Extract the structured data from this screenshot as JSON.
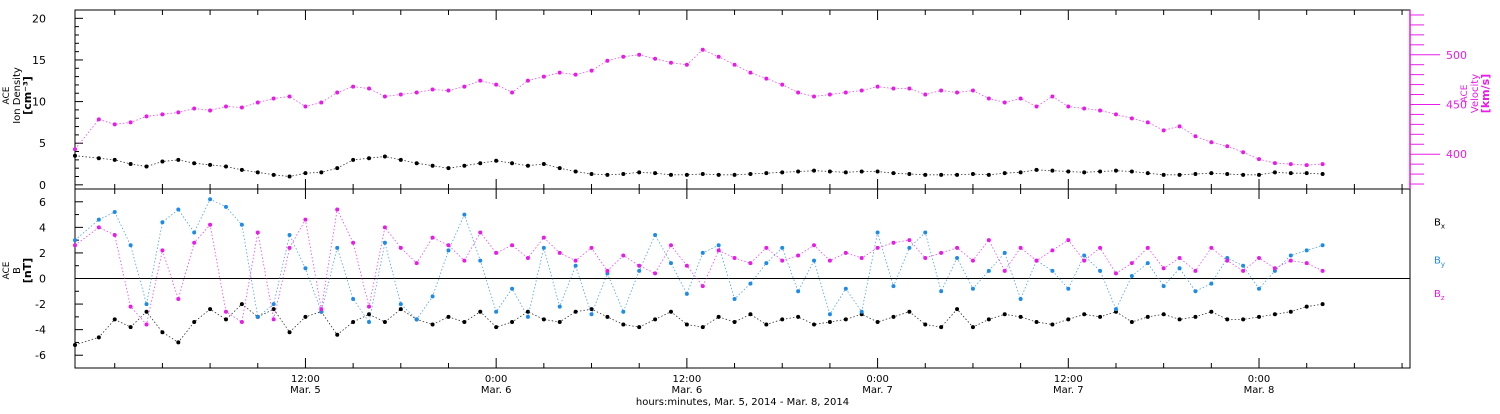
{
  "chart_data": [
    {
      "type": "scatter",
      "title": "",
      "xlabel": "hours:minutes, Mar. 5, 2014 - Mar. 8, 2014",
      "x_range_hours": [
        -2.5,
        81.5
      ],
      "x_ticks": [
        {
          "hour": 12,
          "label_time": "12:00",
          "label_date": "Mar. 5"
        },
        {
          "hour": 24,
          "label_time": "0:00",
          "label_date": "Mar. 6"
        },
        {
          "hour": 36,
          "label_time": "12:00",
          "label_date": "Mar. 6"
        },
        {
          "hour": 48,
          "label_time": "0:00",
          "label_date": "Mar. 7"
        },
        {
          "hour": 60,
          "label_time": "12:00",
          "label_date": "Mar. 7"
        },
        {
          "hour": 72,
          "label_time": "0:00",
          "label_date": "Mar. 8"
        }
      ],
      "left_axis": {
        "label_lines": [
          "ACE",
          "Ion Density",
          "[cm⁻³]"
        ],
        "ylim": [
          -0.5,
          21
        ],
        "ticks": [
          0,
          5,
          10,
          15,
          20
        ]
      },
      "right_axis": {
        "label_lines": [
          "ACE",
          "Velocity",
          "[km/s]"
        ],
        "ylim": [
          365,
          545
        ],
        "ticks": [
          400,
          450,
          500
        ],
        "color": "#e81be8"
      },
      "series": [
        {
          "name": "Density",
          "axis": "left",
          "color": "#000000",
          "x": [
            -2.5,
            -1,
            0,
            1,
            2,
            3,
            4,
            5,
            6,
            7,
            8,
            9,
            10,
            11,
            12,
            13,
            14,
            15,
            16,
            17,
            18,
            19,
            20,
            21,
            22,
            23,
            24,
            25,
            26,
            27,
            28,
            29,
            30,
            31,
            32,
            33,
            34,
            35,
            36,
            37,
            38,
            39,
            40,
            41,
            42,
            43,
            44,
            45,
            46,
            47,
            48,
            49,
            50,
            51,
            52,
            53,
            54,
            55,
            56,
            57,
            58,
            59,
            60,
            61,
            62,
            63,
            64,
            65,
            66,
            67,
            68,
            69,
            70,
            71,
            72,
            73,
            74,
            75,
            76
          ],
          "y": [
            3.5,
            3.2,
            3.0,
            2.5,
            2.2,
            2.8,
            3.0,
            2.6,
            2.4,
            2.2,
            1.8,
            1.5,
            1.2,
            1.0,
            1.4,
            1.5,
            2.0,
            3.0,
            3.2,
            3.4,
            3.0,
            2.6,
            2.3,
            2.0,
            2.3,
            2.6,
            2.9,
            2.6,
            2.3,
            2.5,
            2.0,
            1.6,
            1.3,
            1.2,
            1.3,
            1.5,
            1.4,
            1.2,
            1.2,
            1.3,
            1.2,
            1.2,
            1.3,
            1.4,
            1.5,
            1.6,
            1.7,
            1.6,
            1.5,
            1.6,
            1.6,
            1.4,
            1.3,
            1.2,
            1.2,
            1.2,
            1.3,
            1.2,
            1.4,
            1.5,
            1.8,
            1.7,
            1.6,
            1.5,
            1.6,
            1.7,
            1.6,
            1.4,
            1.2,
            1.2,
            1.3,
            1.4,
            1.3,
            1.2,
            1.2,
            1.5,
            1.4,
            1.4,
            1.3
          ]
        },
        {
          "name": "Velocity",
          "axis": "right",
          "color": "#e81be8",
          "x": [
            -2.5,
            -1,
            0,
            1,
            2,
            3,
            4,
            5,
            6,
            7,
            8,
            9,
            10,
            11,
            12,
            13,
            14,
            15,
            16,
            17,
            18,
            19,
            20,
            21,
            22,
            23,
            24,
            25,
            26,
            27,
            28,
            29,
            30,
            31,
            32,
            33,
            34,
            35,
            36,
            37,
            38,
            39,
            40,
            41,
            42,
            43,
            44,
            45,
            46,
            47,
            48,
            49,
            50,
            51,
            52,
            53,
            54,
            55,
            56,
            57,
            58,
            59,
            60,
            61,
            62,
            63,
            64,
            65,
            66,
            67,
            68,
            69,
            70,
            71,
            72,
            73,
            74,
            75,
            76
          ],
          "y": [
            405,
            435,
            430,
            432,
            438,
            440,
            442,
            446,
            444,
            448,
            447,
            452,
            456,
            458,
            448,
            452,
            462,
            468,
            466,
            458,
            460,
            462,
            465,
            464,
            468,
            474,
            470,
            462,
            474,
            478,
            482,
            480,
            484,
            494,
            498,
            500,
            496,
            492,
            490,
            505,
            498,
            490,
            482,
            476,
            470,
            462,
            458,
            460,
            462,
            464,
            468,
            466,
            466,
            460,
            464,
            462,
            464,
            456,
            452,
            456,
            448,
            458,
            448,
            446,
            444,
            440,
            436,
            432,
            424,
            428,
            418,
            412,
            408,
            402,
            395,
            391,
            390,
            389,
            390
          ]
        }
      ]
    },
    {
      "type": "scatter",
      "title": "",
      "xlabel": "hours:minutes, Mar. 5, 2014 - Mar. 8, 2014",
      "x_range_hours": [
        -2.5,
        81.5
      ],
      "left_axis": {
        "label_lines": [
          "ACE",
          "B",
          "[nT]"
        ],
        "ylim": [
          -7,
          7
        ],
        "ticks": [
          -6,
          -4,
          -2,
          0,
          2,
          4,
          6
        ]
      },
      "zero_line": true,
      "legend": "right",
      "series": [
        {
          "name": "Bx",
          "color": "#000000",
          "x": [
            -2.5,
            -1,
            0,
            1,
            2,
            3,
            4,
            5,
            6,
            7,
            8,
            9,
            10,
            11,
            12,
            13,
            14,
            15,
            16,
            17,
            18,
            19,
            20,
            21,
            22,
            23,
            24,
            25,
            26,
            27,
            28,
            29,
            30,
            31,
            32,
            33,
            34,
            35,
            36,
            37,
            38,
            39,
            40,
            41,
            42,
            43,
            44,
            45,
            46,
            47,
            48,
            49,
            50,
            51,
            52,
            53,
            54,
            55,
            56,
            57,
            58,
            59,
            60,
            61,
            62,
            63,
            64,
            65,
            66,
            67,
            68,
            69,
            70,
            71,
            72,
            73,
            74,
            75,
            76
          ],
          "y": [
            -5.2,
            -4.6,
            -3.2,
            -3.8,
            -2.6,
            -4.2,
            -5.0,
            -3.4,
            -2.4,
            -3.2,
            -2.0,
            -3.0,
            -2.4,
            -4.2,
            -3.0,
            -2.6,
            -4.4,
            -3.4,
            -2.8,
            -3.4,
            -2.4,
            -3.2,
            -3.6,
            -3.0,
            -3.4,
            -2.6,
            -3.8,
            -3.4,
            -2.6,
            -3.2,
            -3.4,
            -2.6,
            -2.4,
            -3.0,
            -3.6,
            -3.8,
            -3.2,
            -2.6,
            -3.6,
            -3.8,
            -3.0,
            -3.4,
            -2.8,
            -3.6,
            -3.2,
            -3.0,
            -3.6,
            -3.4,
            -3.2,
            -2.8,
            -3.4,
            -3.0,
            -2.6,
            -3.6,
            -3.8,
            -2.4,
            -3.8,
            -3.2,
            -2.8,
            -3.0,
            -3.4,
            -3.6,
            -3.2,
            -2.8,
            -3.0,
            -2.6,
            -3.4,
            -3.0,
            -2.8,
            -3.2,
            -3.0,
            -2.6,
            -3.2,
            -3.2,
            -3.0,
            -2.8,
            -2.6,
            -2.2,
            -2.0
          ]
        },
        {
          "name": "By",
          "color": "#1e8ce6",
          "x": [
            -2.5,
            -1,
            0,
            1,
            2,
            3,
            4,
            5,
            6,
            7,
            8,
            9,
            10,
            11,
            12,
            13,
            14,
            15,
            16,
            17,
            18,
            19,
            20,
            21,
            22,
            23,
            24,
            25,
            26,
            27,
            28,
            29,
            30,
            31,
            32,
            33,
            34,
            35,
            36,
            37,
            38,
            39,
            40,
            41,
            42,
            43,
            44,
            45,
            46,
            47,
            48,
            49,
            50,
            51,
            52,
            53,
            54,
            55,
            56,
            57,
            58,
            59,
            60,
            61,
            62,
            63,
            64,
            65,
            66,
            67,
            68,
            69,
            70,
            71,
            72,
            73,
            74,
            75,
            76
          ],
          "y": [
            3.0,
            4.6,
            5.2,
            2.6,
            -2.0,
            4.4,
            5.4,
            3.6,
            6.2,
            5.6,
            4.2,
            -3.0,
            -2.0,
            3.4,
            0.8,
            -2.6,
            2.4,
            -1.6,
            -3.4,
            2.8,
            -2.0,
            -3.2,
            -1.4,
            2.2,
            5.0,
            1.4,
            -2.6,
            -0.8,
            -3.0,
            2.4,
            -2.2,
            1.0,
            -2.8,
            0.4,
            -2.6,
            0.6,
            3.4,
            1.2,
            -1.2,
            2.0,
            2.6,
            -1.6,
            -0.4,
            1.2,
            2.4,
            -1.0,
            1.4,
            -2.8,
            -0.8,
            -2.6,
            3.6,
            -0.6,
            2.4,
            3.6,
            -1.0,
            1.6,
            -0.8,
            0.6,
            2.0,
            -1.6,
            1.4,
            0.6,
            -0.8,
            1.8,
            0.6,
            -2.4,
            0.2,
            1.2,
            -0.6,
            0.8,
            -1.0,
            -0.4,
            1.6,
            1.0,
            -0.8,
            0.6,
            1.8,
            2.2,
            2.6
          ]
        },
        {
          "name": "Bz",
          "color": "#e81be8",
          "x": [
            -2.5,
            -1,
            0,
            1,
            2,
            3,
            4,
            5,
            6,
            7,
            8,
            9,
            10,
            11,
            12,
            13,
            14,
            15,
            16,
            17,
            18,
            19,
            20,
            21,
            22,
            23,
            24,
            25,
            26,
            27,
            28,
            29,
            30,
            31,
            32,
            33,
            34,
            35,
            36,
            37,
            38,
            39,
            40,
            41,
            42,
            43,
            44,
            45,
            46,
            47,
            48,
            49,
            50,
            51,
            52,
            53,
            54,
            55,
            56,
            57,
            58,
            59,
            60,
            61,
            62,
            63,
            64,
            65,
            66,
            67,
            68,
            69,
            70,
            71,
            72,
            73,
            74,
            75,
            76
          ],
          "y": [
            2.6,
            4.0,
            3.4,
            -2.2,
            -3.6,
            2.2,
            -1.6,
            2.8,
            4.2,
            -2.6,
            -3.4,
            3.6,
            -3.2,
            2.4,
            4.6,
            -2.4,
            5.4,
            2.8,
            -2.2,
            4.0,
            2.4,
            1.2,
            3.2,
            2.6,
            1.4,
            3.6,
            2.0,
            2.6,
            1.6,
            3.2,
            2.0,
            1.4,
            2.4,
            0.6,
            1.8,
            1.0,
            0.4,
            2.6,
            1.0,
            -0.6,
            2.2,
            1.6,
            1.2,
            2.4,
            1.4,
            1.8,
            2.6,
            1.4,
            2.0,
            1.6,
            2.4,
            2.8,
            3.0,
            1.6,
            2.0,
            2.4,
            1.4,
            3.0,
            0.6,
            2.4,
            1.4,
            2.2,
            3.0,
            1.4,
            2.4,
            0.4,
            1.2,
            2.4,
            0.8,
            1.6,
            0.6,
            2.4,
            1.4,
            0.6,
            1.6,
            0.8,
            1.4,
            1.2,
            0.6
          ]
        }
      ]
    }
  ]
}
